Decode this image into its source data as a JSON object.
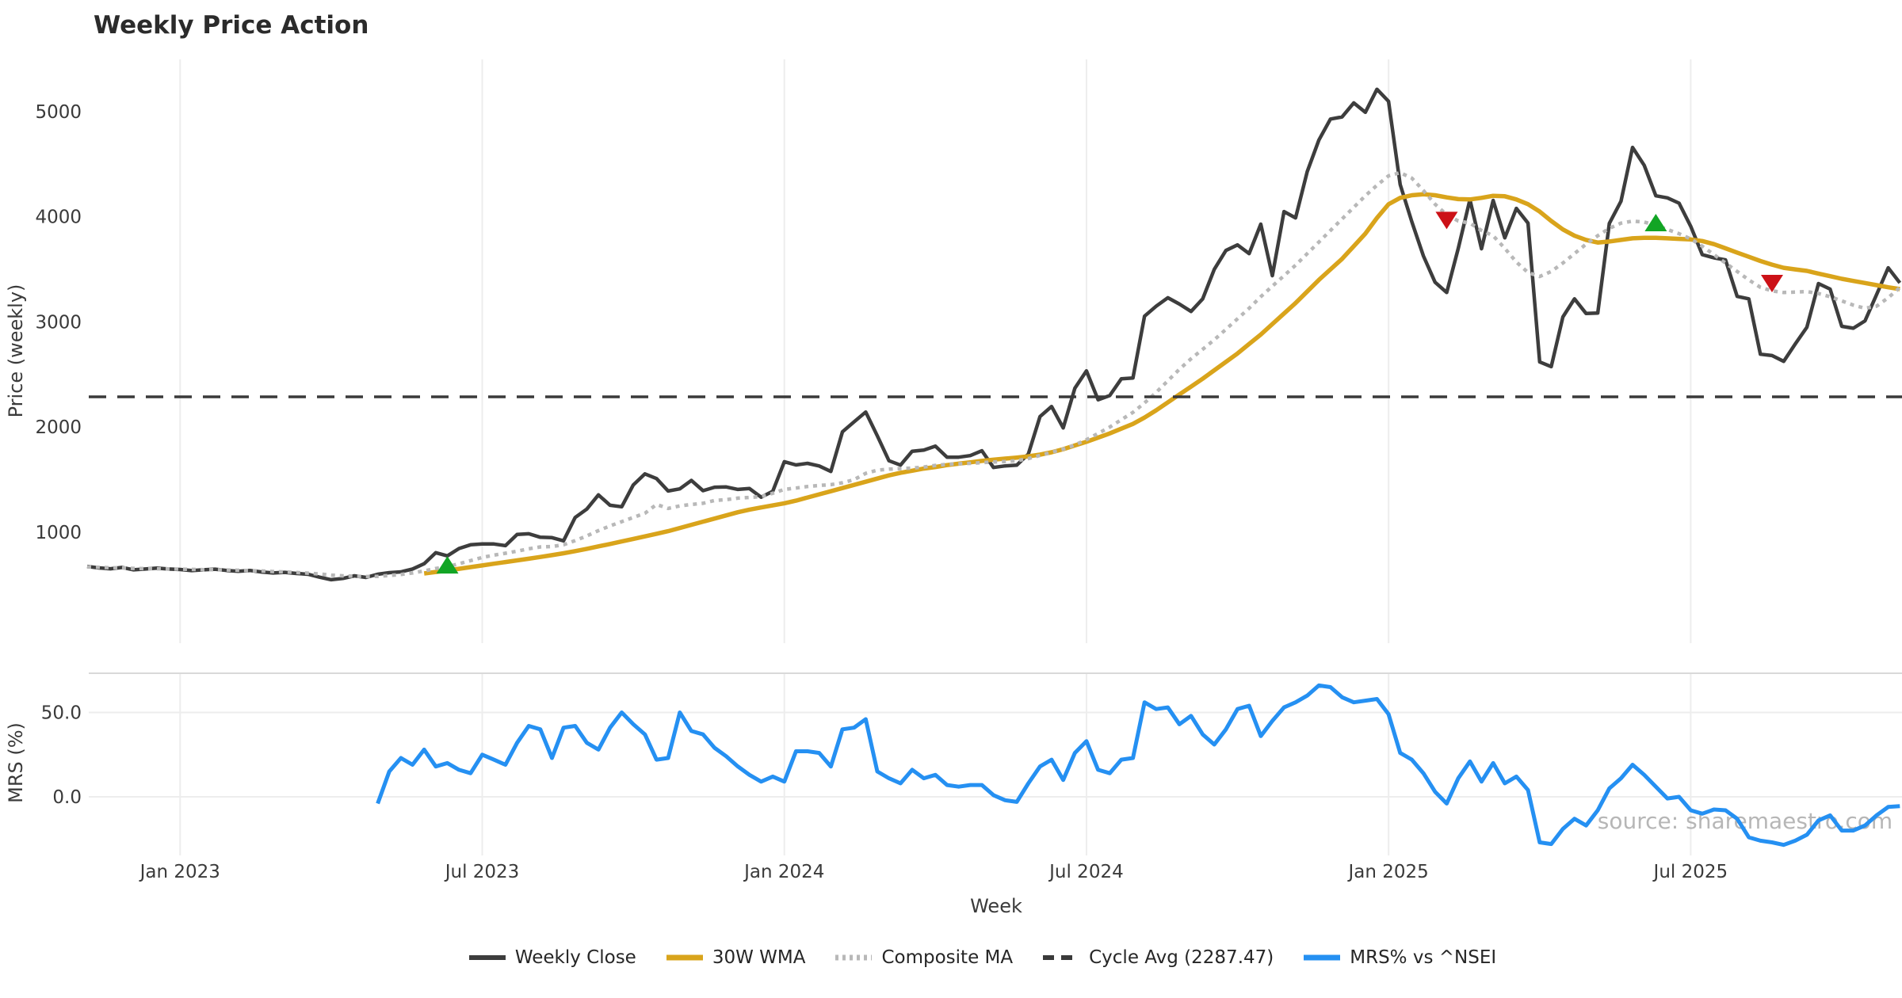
{
  "chart_data": {
    "type": "line",
    "title": "Weekly Price Action",
    "xlabel": "Week",
    "watermark": "source: sharemaestro.com",
    "weeks": 157,
    "panels": [
      {
        "ylabel": "Price (weekly)",
        "yticks": [
          {
            "value": 5000,
            "label": "5000"
          },
          {
            "value": 4000,
            "label": "4000"
          },
          {
            "value": 3000,
            "label": "3000"
          },
          {
            "value": 2000,
            "label": "2000"
          },
          {
            "value": 1000,
            "label": "1000"
          }
        ]
      },
      {
        "ylabel": "MRS (%)",
        "yticks": [
          {
            "value": 50,
            "label": "50.0"
          },
          {
            "value": 0,
            "label": "0.0"
          }
        ]
      }
    ],
    "x_ticks": [
      {
        "week": 8,
        "label": "Jan 2023"
      },
      {
        "week": 34,
        "label": "Jul 2023"
      },
      {
        "week": 60,
        "label": "Jan 2024"
      },
      {
        "week": 86,
        "label": "Jul 2024"
      },
      {
        "week": 112,
        "label": "Jan 2025"
      },
      {
        "week": 138,
        "label": "Jul 2025"
      }
    ],
    "series": [
      {
        "name": "Weekly Close",
        "panel": 0,
        "style": "solid",
        "color": "#3d3d3d",
        "start": 0,
        "values": [
          675,
          660,
          652,
          665,
          642,
          650,
          658,
          650,
          645,
          635,
          642,
          648,
          636,
          628,
          636,
          622,
          612,
          618,
          608,
          600,
          572,
          548,
          560,
          585,
          570,
          600,
          615,
          623,
          650,
          700,
          805,
          775,
          845,
          880,
          888,
          888,
          872,
          978,
          985,
          952,
          948,
          918,
          1140,
          1220,
          1355,
          1256,
          1242,
          1450,
          1555,
          1510,
          1392,
          1412,
          1492,
          1395,
          1428,
          1430,
          1407,
          1415,
          1333,
          1390,
          1671,
          1640,
          1655,
          1630,
          1578,
          1955,
          2050,
          2143,
          1917,
          1680,
          1638,
          1770,
          1781,
          1818,
          1714,
          1714,
          1729,
          1775,
          1616,
          1631,
          1638,
          1744,
          2100,
          2196,
          1992,
          2370,
          2535,
          2260,
          2300,
          2459,
          2467,
          3055,
          3150,
          3230,
          3170,
          3100,
          3220,
          3500,
          3680,
          3733,
          3650,
          3930,
          3440,
          4050,
          3990,
          4430,
          4730,
          4930,
          4950,
          5084,
          4994,
          5213,
          5099,
          4307,
          3953,
          3628,
          3378,
          3280,
          3700,
          4164,
          3696,
          4156,
          3800,
          4080,
          3940,
          2620,
          2575,
          3048,
          3220,
          3080,
          3085,
          3937,
          4148,
          4660,
          4490,
          4200,
          4180,
          4130,
          3910,
          3640,
          3610,
          3590,
          3243,
          3220,
          2693,
          2680,
          2625,
          2790,
          2950,
          3365,
          3312,
          2958,
          2940,
          3010,
          3260,
          3515,
          3372
        ]
      },
      {
        "name": "30W WMA",
        "panel": 0,
        "style": "solid",
        "color": "#d9a41b",
        "start": 29,
        "values": [
          608,
          622,
          637,
          652,
          668,
          684,
          700,
          716,
          732,
          748,
          764,
          782,
          800,
          820,
          842,
          865,
          888,
          912,
          936,
          960,
          985,
          1010,
          1040,
          1070,
          1100,
          1130,
          1160,
          1190,
          1215,
          1235,
          1255,
          1275,
          1300,
          1330,
          1360,
          1390,
          1420,
          1450,
          1480,
          1510,
          1540,
          1565,
          1585,
          1605,
          1620,
          1638,
          1652,
          1665,
          1678,
          1690,
          1700,
          1710,
          1722,
          1738,
          1760,
          1790,
          1825,
          1860,
          1900,
          1940,
          1985,
          2030,
          2090,
          2160,
          2235,
          2310,
          2385,
          2460,
          2540,
          2620,
          2700,
          2790,
          2880,
          2980,
          3080,
          3180,
          3290,
          3400,
          3500,
          3600,
          3720,
          3840,
          3990,
          4119,
          4180,
          4205,
          4215,
          4205,
          4185,
          4168,
          4165,
          4180,
          4200,
          4195,
          4165,
          4120,
          4050,
          3960,
          3880,
          3820,
          3780,
          3755,
          3765,
          3780,
          3795,
          3800,
          3800,
          3795,
          3790,
          3785,
          3770,
          3740,
          3700,
          3660,
          3620,
          3580,
          3545,
          3515,
          3500,
          3486,
          3460,
          3435,
          3410,
          3390,
          3370,
          3350,
          3330,
          3312
        ]
      },
      {
        "name": "Composite MA",
        "panel": 0,
        "style": "dotted",
        "color": "#b8b8b8",
        "start": 0,
        "values": [
          670,
          666,
          662,
          660,
          656,
          653,
          652,
          651,
          649,
          646,
          644,
          643,
          641,
          638,
          635,
          631,
          626,
          622,
          617,
          611,
          602,
          592,
          585,
          582,
          578,
          580,
          588,
          598,
          612,
          632,
          655,
          672,
          700,
          730,
          760,
          782,
          800,
          820,
          842,
          860,
          864,
          880,
          920,
          965,
          1015,
          1060,
          1100,
          1140,
          1180,
          1264,
          1226,
          1250,
          1264,
          1275,
          1302,
          1310,
          1324,
          1330,
          1339,
          1370,
          1407,
          1420,
          1435,
          1445,
          1452,
          1470,
          1500,
          1560,
          1590,
          1600,
          1605,
          1610,
          1620,
          1635,
          1645,
          1650,
          1655,
          1662,
          1668,
          1672,
          1680,
          1700,
          1730,
          1760,
          1790,
          1830,
          1880,
          1940,
          2000,
          2070,
          2140,
          2230,
          2330,
          2440,
          2550,
          2650,
          2740,
          2830,
          2930,
          3030,
          3130,
          3240,
          3340,
          3440,
          3540,
          3650,
          3760,
          3870,
          3980,
          4090,
          4200,
          4300,
          4390,
          4420,
          4368,
          4250,
          4120,
          4020,
          3960,
          3940,
          3870,
          3820,
          3700,
          3570,
          3470,
          3432,
          3480,
          3560,
          3650,
          3740,
          3820,
          3890,
          3940,
          3959,
          3950,
          3920,
          3880,
          3840,
          3790,
          3720,
          3640,
          3560,
          3480,
          3400,
          3330,
          3296,
          3280,
          3284,
          3289,
          3270,
          3240,
          3200,
          3160,
          3130,
          3150,
          3230,
          3327
        ]
      },
      {
        "name": "Cycle Avg (2287.47)",
        "panel": 0,
        "style": "dashed",
        "color": "#3a3a3a",
        "hline": 2287.47
      },
      {
        "name": "MRS% vs ^NSEI",
        "panel": 1,
        "style": "solid",
        "color": "#2590f2",
        "start": 25,
        "values": [
          -4,
          15,
          23,
          19,
          28,
          18,
          20,
          16,
          14,
          25,
          22,
          19,
          32,
          42,
          40,
          23,
          41,
          42,
          32,
          28,
          41,
          50,
          43,
          37,
          22,
          23,
          50,
          39,
          37,
          29,
          24,
          18,
          13,
          9,
          12,
          9,
          27,
          27,
          26,
          18,
          40,
          41,
          46,
          15,
          11,
          8,
          16,
          11,
          13,
          7,
          6,
          7,
          7,
          1,
          -2,
          -3,
          8,
          18,
          22,
          10,
          26,
          33,
          16,
          14,
          22,
          23,
          56,
          52,
          53,
          43,
          48,
          37,
          31,
          40,
          52,
          54,
          36,
          45,
          53,
          56,
          60,
          66,
          65,
          59,
          56,
          57,
          58,
          49,
          26,
          22,
          14,
          3,
          -4,
          11,
          21,
          9,
          20,
          8,
          12,
          4,
          -27,
          -28,
          -19,
          -13,
          -17,
          -8,
          5,
          11,
          19,
          13,
          6,
          -1,
          0,
          -8,
          -10,
          -7.5,
          -8,
          -13,
          -24,
          -26,
          -27,
          -28.5,
          -26,
          -22.5,
          -14,
          -11,
          -20,
          -20,
          -17,
          -11,
          -6,
          -5.5
        ]
      }
    ],
    "markers": [
      {
        "shape": "triangle-up",
        "color": "#12a525",
        "week": 31,
        "price": 690
      },
      {
        "shape": "triangle-down",
        "color": "#cc1117",
        "week": 117,
        "price": 3965
      },
      {
        "shape": "triangle-up",
        "color": "#12a525",
        "week": 135,
        "price": 3945
      },
      {
        "shape": "triangle-down",
        "color": "#cc1117",
        "week": 145,
        "price": 3365
      }
    ],
    "grid_color": "#ededed",
    "panel_border_color": "#d9d9d9",
    "tick_color": "#3a3a3a",
    "title_color": "#2b2b2b",
    "watermark_color": "#9e9e9e"
  }
}
